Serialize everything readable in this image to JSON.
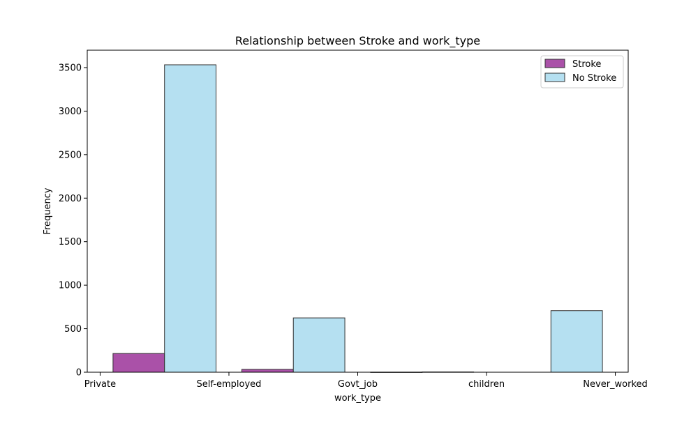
{
  "chart_data": {
    "type": "bar",
    "title": "Relationship between Stroke and work_type",
    "xlabel": "work_type",
    "ylabel": "Frequency",
    "x_ticks": [
      "Private",
      "Self-employed",
      "Govt_job",
      "children",
      "Never_worked"
    ],
    "y_ticks": [
      "0",
      "500",
      "1000",
      "1500",
      "2000",
      "2500",
      "3000",
      "3500"
    ],
    "ylim": [
      0,
      3700
    ],
    "xlim": [
      -0.1,
      4.1
    ],
    "series": [
      {
        "name": "Stroke",
        "color": "#9b3399",
        "bars": [
          {
            "x_start": 0.1,
            "x_end": 0.5,
            "value": 215
          },
          {
            "x_start": 1.1,
            "x_end": 1.5,
            "value": 33
          },
          {
            "x_start": 2.1,
            "x_end": 2.5,
            "value": 1
          }
        ]
      },
      {
        "name": "No Stroke",
        "color": "#a8dbef",
        "bars": [
          {
            "x_start": 0.5,
            "x_end": 0.9,
            "value": 3532
          },
          {
            "x_start": 1.5,
            "x_end": 1.9,
            "value": 624
          },
          {
            "x_start": 2.5,
            "x_end": 2.9,
            "value": 3
          },
          {
            "x_start": 3.5,
            "x_end": 3.9,
            "value": 707
          }
        ]
      }
    ],
    "legend": {
      "position": "top-right",
      "entries": [
        "Stroke",
        "No Stroke"
      ]
    },
    "grid": false
  }
}
